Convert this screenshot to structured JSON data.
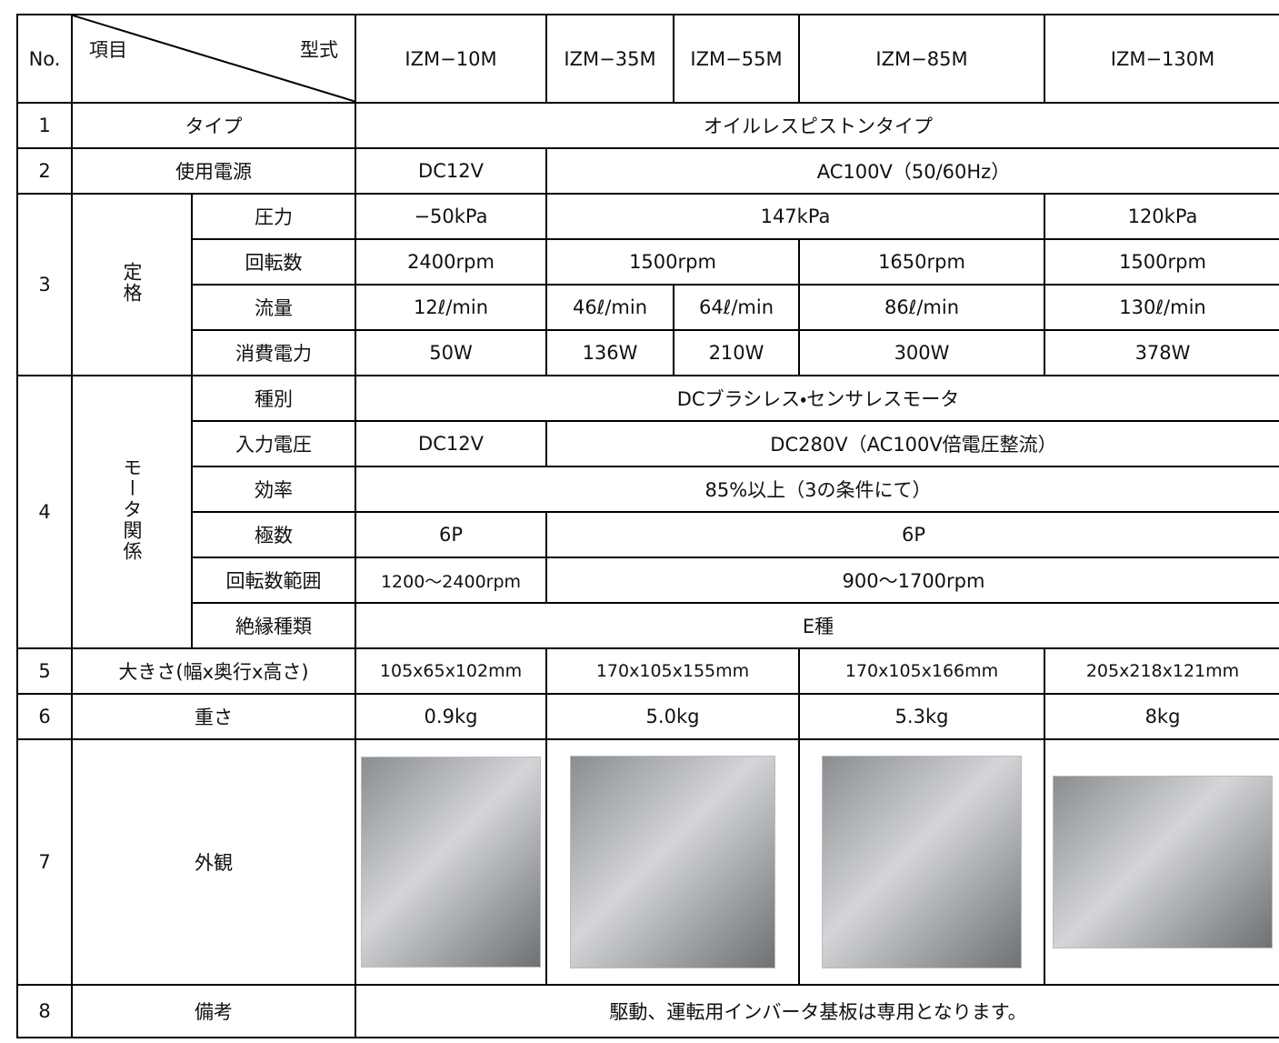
{
  "header": {
    "no": "No.",
    "item": "項目",
    "model": "型式",
    "models": [
      "IZM−10M",
      "IZM−35M",
      "IZM−55M",
      "IZM−85M",
      "IZM−130M"
    ]
  },
  "rows": [
    {
      "no": "1",
      "label": "タイプ",
      "cells": [
        "オイルレスピストンタイプ"
      ]
    },
    {
      "no": "2",
      "label": "使用電源",
      "cells": [
        "DC12V",
        "AC100V（50/60Hz）"
      ]
    },
    {
      "no": "3",
      "label": "定格",
      "sub": [
        {
          "label": "圧力",
          "cells": [
            "−50kPa",
            "147kPa",
            "120kPa"
          ]
        },
        {
          "label": "回転数",
          "cells": [
            "2400rpm",
            "1500rpm",
            "1650rpm",
            "1500rpm"
          ]
        },
        {
          "label": "流量",
          "cells": [
            "12ℓ/min",
            "46ℓ/min",
            "64ℓ/min",
            "86ℓ/min",
            "130ℓ/min"
          ]
        },
        {
          "label": "消費電力",
          "cells": [
            "50W",
            "136W",
            "210W",
            "300W",
            "378W"
          ]
        }
      ]
    },
    {
      "no": "4",
      "label": "モータ関係",
      "sub": [
        {
          "label": "種別",
          "cells": [
            "DCブラシレス・センサレスモータ"
          ]
        },
        {
          "label": "入力電圧",
          "cells": [
            "DC12V",
            "DC280V（AC100V倍電圧整流）"
          ]
        },
        {
          "label": "効率",
          "cells": [
            "85%以上（3の条件にて）"
          ]
        },
        {
          "label": "極数",
          "cells": [
            "6P",
            "6P"
          ]
        },
        {
          "label": "回転数範囲",
          "cells": [
            "1200〜2400rpm",
            "900〜1700rpm"
          ]
        },
        {
          "label": "絶縁種類",
          "cells": [
            "E種"
          ]
        }
      ]
    },
    {
      "no": "5",
      "label": "大きさ(幅x奥行x高さ)",
      "cells": [
        "105x65x102mm",
        "170x105x155mm",
        "170x105x166mm",
        "205x218x121mm"
      ]
    },
    {
      "no": "6",
      "label": "重さ",
      "cells": [
        "0.9kg",
        "5.0kg",
        "5.3kg",
        "8kg"
      ]
    },
    {
      "no": "7",
      "label": "外観"
    },
    {
      "no": "8",
      "label": "備考",
      "cells": [
        "駆動、運転用インバータ基板は専用となります。"
      ]
    }
  ]
}
